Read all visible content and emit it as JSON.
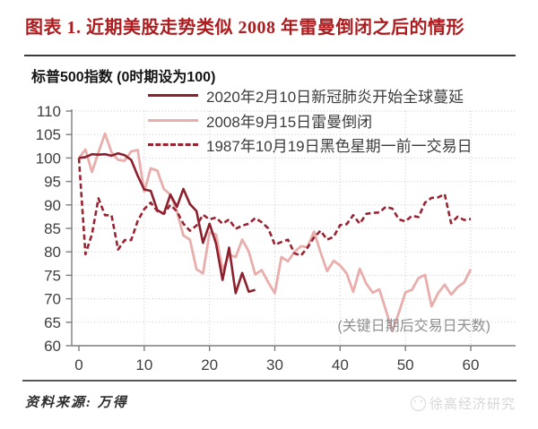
{
  "header": {
    "title": "图表 1. 近期美股走势类似 2008 年雷曼倒闭之后的情形"
  },
  "chart_data": {
    "type": "line",
    "title": "标普500指数 (0时期设为100)",
    "annotation": "(关键日期后交易日天数)",
    "xlim": [
      0,
      62
    ],
    "ylim": [
      60,
      110
    ],
    "x_ticks": [
      0,
      10,
      20,
      30,
      40,
      50,
      60
    ],
    "y_ticks": [
      60,
      65,
      70,
      75,
      80,
      85,
      90,
      95,
      100,
      105,
      110
    ],
    "grid": "dotted",
    "legend_position": "inside-top-left",
    "series": [
      {
        "name": "2020年2月10日新冠肺炎开始全球蔓延",
        "style": "solid",
        "color": "#8e1f2d",
        "width": 2.6,
        "values": [
          100,
          100.2,
          100.8,
          100.7,
          100.8,
          100.5,
          101,
          100.6,
          99.6,
          96.2,
          93.3,
          93,
          88.9,
          88.1,
          92.2,
          89.6,
          93.4,
          90.2,
          88.7,
          81.9,
          86,
          81.8,
          74,
          80.9,
          71.2,
          75.5,
          71.5,
          71.9
        ]
      },
      {
        "name": "2008年9月15日雷曼倒闭",
        "style": "solid",
        "color": "#e9aeac",
        "width": 2.8,
        "values": [
          100,
          101.8,
          97,
          101.2,
          105.2,
          101.2,
          99.6,
          99.4,
          101.4,
          101.7,
          92.8,
          97.8,
          97.3,
          93.4,
          92.2,
          88.6,
          83.5,
          82.6,
          76.3,
          75.4,
          84.1,
          83.7,
          76.1,
          79.4,
          78.9,
          82.6,
          80.1,
          75.2,
          76.1,
          73.5,
          71.2,
          78.9,
          78,
          80,
          81.2,
          81,
          84.3,
          79.9,
          75.9,
          78.1,
          77.1,
          75.4,
          71.5,
          76.4,
          73.2,
          71.3,
          72,
          67.6,
          63.1,
          67.1,
          71.4,
          71.9,
          74.4,
          75.1,
          68.4,
          71.2,
          73,
          70.9,
          72.5,
          73.5,
          76.3
        ]
      },
      {
        "name": "1987年10月19日黑色星期一前一交易日",
        "style": "dashed",
        "color": "#9b2231",
        "width": 2.6,
        "values": [
          100,
          79.5,
          83.8,
          91.4,
          87.8,
          87.8,
          80.5,
          82.5,
          82.5,
          86.6,
          89.1,
          90.5,
          88.7,
          88.1,
          90,
          88.6,
          86,
          84.5,
          85.6,
          87.9,
          86.9,
          87.3,
          86,
          86.9,
          84.9,
          85.6,
          86,
          87.2,
          86.3,
          85,
          81.5,
          82.1,
          82.6,
          79.7,
          79.2,
          80.9,
          83.1,
          84.5,
          82.6,
          83.2,
          85.7,
          85.9,
          87.8,
          86,
          88.1,
          88.3,
          88.4,
          89.6,
          89.2,
          86.9,
          86.5,
          87.7,
          87.4,
          90.5,
          91.5,
          91.6,
          92.3,
          86.1,
          87.5,
          86.8,
          87
        ]
      }
    ]
  },
  "footer": {
    "source": "资料来源: 万得",
    "watermark": "徐高经济研究"
  },
  "colors": {
    "title_red": "#ad1c1f",
    "axis": "#7d7d7d",
    "grid": "#c8c8c8",
    "tick_label": "#3f3f3f",
    "divider_top": "#3a3a3a",
    "divider_bottom": "#565656",
    "watermark": "#d7d7d7"
  }
}
